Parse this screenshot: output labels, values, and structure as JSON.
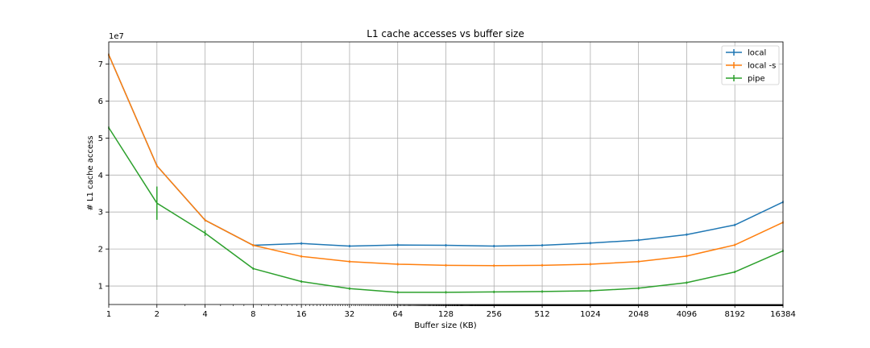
{
  "chart_data": {
    "type": "line",
    "title": "L1 cache accesses vs buffer size",
    "xlabel": "Buffer size (KB)",
    "ylabel": "# L1 cache access",
    "y_multiplier_label": "1e7",
    "x_scale": "log2",
    "x": [
      1,
      2,
      4,
      8,
      16,
      32,
      64,
      128,
      256,
      512,
      1024,
      2048,
      4096,
      8192,
      16384
    ],
    "x_tick_labels": [
      "1",
      "2",
      "4",
      "8",
      "16",
      "32",
      "64",
      "128",
      "256",
      "512",
      "1024",
      "2048",
      "4096",
      "8192",
      "16384"
    ],
    "xlim": [
      1,
      16384
    ],
    "ylim": [
      0.5,
      7.6
    ],
    "y_ticks": [
      1,
      2,
      3,
      4,
      5,
      6,
      7
    ],
    "y_tick_labels": [
      "1",
      "2",
      "3",
      "4",
      "5",
      "6",
      "7"
    ],
    "grid": true,
    "legend_position": "top-right",
    "series": [
      {
        "name": "local",
        "color": "#1f77b4",
        "values": [
          7.25,
          4.25,
          2.78,
          2.1,
          2.15,
          2.08,
          2.11,
          2.1,
          2.08,
          2.1,
          2.16,
          2.24,
          2.39,
          2.65,
          3.27
        ],
        "errors": [
          0,
          0,
          0,
          0,
          0,
          0,
          0,
          0,
          0,
          0,
          0,
          0,
          0,
          0,
          0
        ]
      },
      {
        "name": "local -s",
        "color": "#ff7f0e",
        "values": [
          7.25,
          4.25,
          2.78,
          2.1,
          1.8,
          1.66,
          1.59,
          1.56,
          1.55,
          1.56,
          1.59,
          1.66,
          1.81,
          2.11,
          2.72
        ],
        "errors": [
          0,
          0,
          0,
          0,
          0,
          0,
          0,
          0,
          0,
          0,
          0,
          0,
          0,
          0,
          0
        ]
      },
      {
        "name": "pipe",
        "color": "#2ca02c",
        "values": [
          5.28,
          3.24,
          2.43,
          1.47,
          1.12,
          0.93,
          0.83,
          0.83,
          0.84,
          0.85,
          0.87,
          0.94,
          1.09,
          1.38,
          1.95
        ],
        "errors": [
          0,
          0.45,
          0.08,
          0,
          0,
          0,
          0,
          0,
          0,
          0,
          0,
          0,
          0,
          0,
          0
        ]
      }
    ]
  }
}
